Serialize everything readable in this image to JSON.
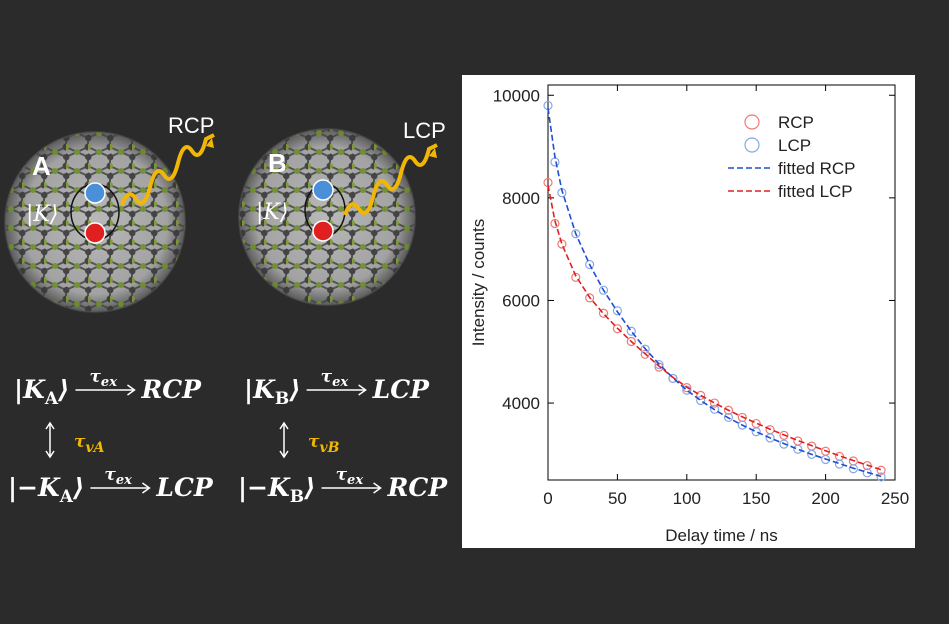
{
  "panels": [
    {
      "label": "A",
      "ket": "|K⟩",
      "emission": "RCP"
    },
    {
      "label": "B",
      "ket": "|K⟩",
      "emission": "LCP"
    }
  ],
  "equations": [
    {
      "ket": "|K",
      "sub": "A",
      "end": "⟩",
      "arrow_label": "τ",
      "arrow_sub": "ex",
      "result": "RCP"
    },
    {
      "ket": "|K",
      "sub": "B",
      "end": "⟩",
      "arrow_label": "τ",
      "arrow_sub": "ex",
      "result": "LCP"
    },
    {
      "ket": "|−K",
      "sub": "A",
      "end": "⟩",
      "arrow_label": "τ",
      "arrow_sub": "ex",
      "result": "LCP"
    },
    {
      "ket": "|−K",
      "sub": "B",
      "end": "⟩",
      "arrow_label": "τ",
      "arrow_sub": "ex",
      "result": "RCP"
    }
  ],
  "couplings": [
    {
      "label": "τ",
      "sub": "vA"
    },
    {
      "label": "τ",
      "sub": "vB"
    }
  ],
  "chart_data": {
    "type": "scatter",
    "x_label": "Delay time / ns",
    "y_label": "Intensity / counts",
    "x": [
      0,
      5,
      10,
      20,
      30,
      40,
      50,
      60,
      70,
      80,
      90,
      100,
      110,
      120,
      130,
      140,
      150,
      160,
      170,
      180,
      190,
      200,
      210,
      220,
      230,
      240
    ],
    "series": [
      {
        "name": "RCP",
        "color": "#ef7a74",
        "marker": "circle",
        "values": [
          8300,
          7500,
          7100,
          6450,
          6050,
          5750,
          5450,
          5200,
          4950,
          4700,
          4480,
          4300,
          4150,
          4000,
          3860,
          3720,
          3600,
          3480,
          3370,
          3260,
          3160,
          3060,
          2960,
          2870,
          2780,
          2690
        ]
      },
      {
        "name": "LCP",
        "color": "#86a8e6",
        "marker": "circle",
        "values": [
          9800,
          8700,
          8100,
          7300,
          6700,
          6200,
          5800,
          5400,
          5050,
          4750,
          4480,
          4250,
          4050,
          3880,
          3720,
          3570,
          3440,
          3320,
          3200,
          3100,
          3000,
          2900,
          2810,
          2720,
          2640,
          2560
        ]
      },
      {
        "name": "fitted RCP",
        "color": "#1f4fd0",
        "marker": "dashed-line",
        "values": [
          9750,
          8800,
          8150,
          7300,
          6700,
          6200,
          5780,
          5400,
          5060,
          4760,
          4490,
          4250,
          4050,
          3870,
          3710,
          3570,
          3440,
          3320,
          3210,
          3100,
          3000,
          2910,
          2820,
          2730,
          2650,
          2570
        ]
      },
      {
        "name": "fitted LCP",
        "color": "#e02020",
        "marker": "dashed-line",
        "values": [
          8250,
          7550,
          7100,
          6480,
          6060,
          5740,
          5460,
          5200,
          4960,
          4720,
          4500,
          4310,
          4150,
          4000,
          3860,
          3730,
          3610,
          3490,
          3380,
          3270,
          3170,
          3070,
          2970,
          2880,
          2790,
          2700
        ]
      }
    ],
    "xlim": [
      0,
      250
    ],
    "xticks": [
      0,
      50,
      100,
      150,
      200,
      250
    ],
    "ylim": [
      2500,
      10200
    ],
    "yticks": [
      4000,
      6000,
      8000,
      10000
    ],
    "grid": false,
    "legend": "upper right"
  }
}
